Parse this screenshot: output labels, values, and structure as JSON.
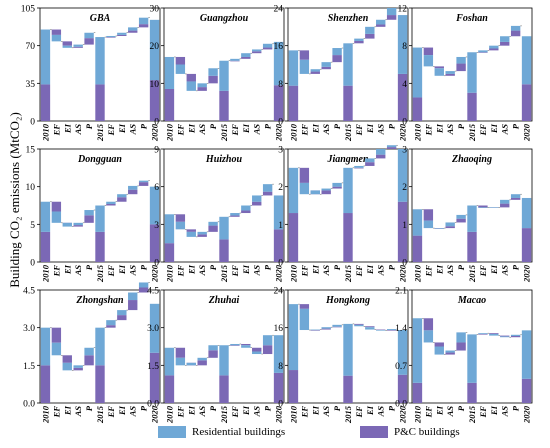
{
  "y_axis_label": "Building CO₂ emissions (MtCO₂)",
  "colors": {
    "residential": "#6fa8d6",
    "pc": "#7b68b5"
  },
  "legend": {
    "residential": "Residential buildings",
    "pc": "P&C buildings"
  },
  "chart_data": [
    {
      "type": "waterfall-bar",
      "title": "GBA",
      "ylim": [
        0,
        105
      ],
      "yticks": [
        "0",
        "35",
        "70",
        "105"
      ],
      "categories": [
        "2010",
        "EF",
        "EI",
        "AS",
        "P",
        "2015",
        "EF",
        "EI",
        "AS",
        "P",
        "2020"
      ],
      "series": [
        {
          "name": "Residential buildings",
          "values": [
            51,
            -6,
            -2,
            2,
            5,
            44,
            1,
            2,
            3,
            6,
            56
          ]
        },
        {
          "name": "P&C buildings",
          "values": [
            34,
            -5,
            -4,
            1,
            6,
            34,
            0,
            1,
            2,
            3,
            38
          ]
        }
      ]
    },
    {
      "type": "waterfall-bar",
      "title": "Guangzhou",
      "ylim": [
        0,
        30
      ],
      "yticks": [
        "0",
        "10",
        "20",
        "30"
      ],
      "categories": [
        "2010",
        "EF",
        "EI",
        "AS",
        "P",
        "2015",
        "EF",
        "EI",
        "AS",
        "P",
        "2020"
      ],
      "series": [
        {
          "name": "Residential buildings",
          "values": [
            8.5,
            -2.5,
            -2.5,
            1,
            2,
            8,
            0.5,
            1,
            0.5,
            1,
            11.5
          ]
        },
        {
          "name": "P&C buildings",
          "values": [
            8.5,
            -2,
            -2,
            1,
            2,
            8,
            0,
            0.5,
            0.5,
            0.5,
            9.5
          ]
        }
      ]
    },
    {
      "type": "waterfall-bar",
      "title": "Shenzhen",
      "ylim": [
        0,
        24
      ],
      "yticks": [
        "0",
        "8",
        "16",
        "24"
      ],
      "categories": [
        "2010",
        "EF",
        "EI",
        "AS",
        "P",
        "2015",
        "EF",
        "EI",
        "AS",
        "P",
        "2020"
      ],
      "series": [
        {
          "name": "Residential buildings",
          "values": [
            7.5,
            -3,
            0.5,
            1,
            1.5,
            9,
            0.5,
            1.5,
            1,
            1.5,
            12.5
          ]
        },
        {
          "name": "P&C buildings",
          "values": [
            7.5,
            -2,
            0.5,
            0.5,
            1.5,
            7.5,
            0.5,
            1,
            0.5,
            1,
            10
          ]
        }
      ]
    },
    {
      "type": "waterfall-bar",
      "title": "Foshan",
      "ylim": [
        0,
        12
      ],
      "yticks": [
        "0",
        "4",
        "8",
        "12"
      ],
      "categories": [
        "2010",
        "EF",
        "EI",
        "AS",
        "P",
        "2015",
        "EF",
        "EI",
        "AS",
        "P",
        "2020"
      ],
      "series": [
        {
          "name": "Residential buildings",
          "values": [
            5.3,
            -1.2,
            -0.8,
            0.3,
            0.7,
            4.3,
            0.2,
            0.3,
            0.6,
            0.5,
            5.1
          ]
        },
        {
          "name": "P&C buildings",
          "values": [
            2.5,
            -0.8,
            -0.2,
            0.2,
            0.8,
            3.0,
            0,
            0.2,
            0.4,
            0.6,
            3.9
          ]
        }
      ]
    },
    {
      "type": "waterfall-bar",
      "title": "Dongguan",
      "ylim": [
        0,
        15
      ],
      "yticks": [
        "0",
        "5",
        "10",
        "15"
      ],
      "categories": [
        "2010",
        "EF",
        "EI",
        "AS",
        "P",
        "2015",
        "EF",
        "EI",
        "AS",
        "P",
        "2020"
      ],
      "series": [
        {
          "name": "Residential buildings",
          "values": [
            4,
            -1.5,
            -0.5,
            0.3,
            0.7,
            3.5,
            0.3,
            0.4,
            0.5,
            0.2,
            5
          ]
        },
        {
          "name": "P&C buildings",
          "values": [
            4,
            -1.3,
            0,
            0.2,
            1,
            4,
            0.2,
            0.6,
            0.6,
            0.5,
            5
          ]
        }
      ]
    },
    {
      "type": "waterfall-bar",
      "title": "Huizhou",
      "ylim": [
        0,
        9
      ],
      "yticks": [
        "0",
        "3",
        "6",
        "9"
      ],
      "categories": [
        "2010",
        "EF",
        "EI",
        "AS",
        "P",
        "2015",
        "EF",
        "EI",
        "AS",
        "P",
        "2020"
      ],
      "series": [
        {
          "name": "Residential buildings",
          "values": [
            2.3,
            -0.6,
            -0.4,
            0.2,
            0.3,
            1.8,
            0.2,
            0.4,
            0.5,
            0.6,
            2.7
          ]
        },
        {
          "name": "P&C buildings",
          "values": [
            1.5,
            -0.6,
            -0.2,
            0.2,
            0.5,
            1.8,
            0.1,
            0.2,
            0.3,
            0.3,
            2.6
          ]
        }
      ]
    },
    {
      "type": "waterfall-bar",
      "title": "Jiangmen",
      "ylim": [
        0,
        3
      ],
      "yticks": [
        "0",
        "1",
        "2",
        "3"
      ],
      "categories": [
        "2010",
        "EF",
        "EI",
        "AS",
        "P",
        "2015",
        "EF",
        "EI",
        "AS",
        "P",
        "2020"
      ],
      "series": [
        {
          "name": "Residential buildings",
          "values": [
            1.2,
            -0.3,
            -0.1,
            0.05,
            0.1,
            1.2,
            0.05,
            0.1,
            0.15,
            0.05,
            1.4
          ]
        },
        {
          "name": "P&C buildings",
          "values": [
            1.3,
            -0.4,
            0.1,
            0.1,
            0.05,
            1.3,
            0,
            0.1,
            0.1,
            0.05,
            1.6
          ]
        }
      ]
    },
    {
      "type": "waterfall-bar",
      "title": "Zhaoqing",
      "ylim": [
        0,
        3
      ],
      "yticks": [
        "0",
        "1",
        "2",
        "3"
      ],
      "categories": [
        "2010",
        "EF",
        "EI",
        "AS",
        "P",
        "2015",
        "EF",
        "EI",
        "AS",
        "P",
        "2020"
      ],
      "series": [
        {
          "name": "Residential buildings",
          "values": [
            0.7,
            -0.2,
            0,
            0.1,
            0.1,
            0.7,
            0,
            0,
            0.1,
            0.1,
            0.8
          ]
        },
        {
          "name": "P&C buildings",
          "values": [
            0.7,
            -0.3,
            0,
            0.05,
            0.1,
            0.8,
            -0.05,
            0,
            0.1,
            0.05,
            0.9
          ]
        }
      ]
    },
    {
      "type": "waterfall-bar",
      "title": "Zhongshan",
      "ylim": [
        0,
        4.5
      ],
      "yticks": [
        "0.0",
        "1.5",
        "3.0",
        "4.5"
      ],
      "categories": [
        "2010",
        "EF",
        "EI",
        "AS",
        "P",
        "2015",
        "EF",
        "EI",
        "AS",
        "P",
        "2020"
      ],
      "series": [
        {
          "name": "Residential buildings",
          "values": [
            1.5,
            -0.5,
            -0.3,
            0.1,
            0.3,
            1.5,
            0.2,
            0.2,
            0.3,
            0.2,
            1.95
          ]
        },
        {
          "name": "P&C buildings",
          "values": [
            1.5,
            -0.6,
            -0.3,
            0.1,
            0.4,
            1.5,
            0.1,
            0.2,
            0.4,
            0.2,
            2.0
          ]
        }
      ]
    },
    {
      "type": "waterfall-bar",
      "title": "Zhuhai",
      "ylim": [
        0,
        4.5
      ],
      "yticks": [
        "0.0",
        "1.5",
        "3.0",
        "4.5"
      ],
      "categories": [
        "2010",
        "EF",
        "EI",
        "AS",
        "P",
        "2015",
        "EF",
        "EI",
        "AS",
        "P",
        "2020"
      ],
      "series": [
        {
          "name": "Residential buildings",
          "values": [
            1.1,
            -0.3,
            -0.1,
            0.1,
            0.2,
            1.2,
            0.05,
            -0.1,
            -0.1,
            0.4,
            1.5
          ]
        },
        {
          "name": "P&C buildings",
          "values": [
            1.1,
            -0.4,
            0.1,
            0.2,
            0.3,
            1.1,
            0,
            -0.05,
            -0.15,
            0.35,
            1.2
          ]
        }
      ]
    },
    {
      "type": "waterfall-bar",
      "title": "Hongkong",
      "ylim": [
        0,
        24
      ],
      "yticks": [
        "0",
        "8",
        "16",
        "24"
      ],
      "categories": [
        "2010",
        "EF",
        "EI",
        "AS",
        "P",
        "2015",
        "EF",
        "EI",
        "AS",
        "P",
        "2020"
      ],
      "series": [
        {
          "name": "Residential buildings",
          "values": [
            14,
            -4.5,
            0.1,
            0.3,
            0.4,
            11,
            -0.3,
            -0.5,
            -0.1,
            0.2,
            9.5
          ]
        },
        {
          "name": "P&C buildings",
          "values": [
            7,
            -1,
            0,
            0.2,
            0.1,
            5.8,
            -0.2,
            -0.2,
            -0.1,
            0.1,
            6
          ]
        }
      ]
    },
    {
      "type": "waterfall-bar",
      "title": "Macao",
      "ylim": [
        0,
        2.8
      ],
      "yticks": [
        "0.0",
        "0.7",
        "1.4",
        "2.1"
      ],
      "categories": [
        "2010",
        "EF",
        "EI",
        "AS",
        "P",
        "2015",
        "EF",
        "EI",
        "AS",
        "P",
        "2020"
      ],
      "series": [
        {
          "name": "Residential buildings",
          "values": [
            1.6,
            -0.3,
            -0.2,
            0.05,
            0.25,
            1.2,
            0.02,
            -0.04,
            -0.02,
            0.03,
            1.2
          ]
        },
        {
          "name": "P&C buildings",
          "values": [
            0.5,
            -0.3,
            -0.1,
            0.05,
            0.2,
            0.5,
            0.01,
            -0.02,
            -0.02,
            0.03,
            0.6
          ]
        }
      ]
    }
  ]
}
